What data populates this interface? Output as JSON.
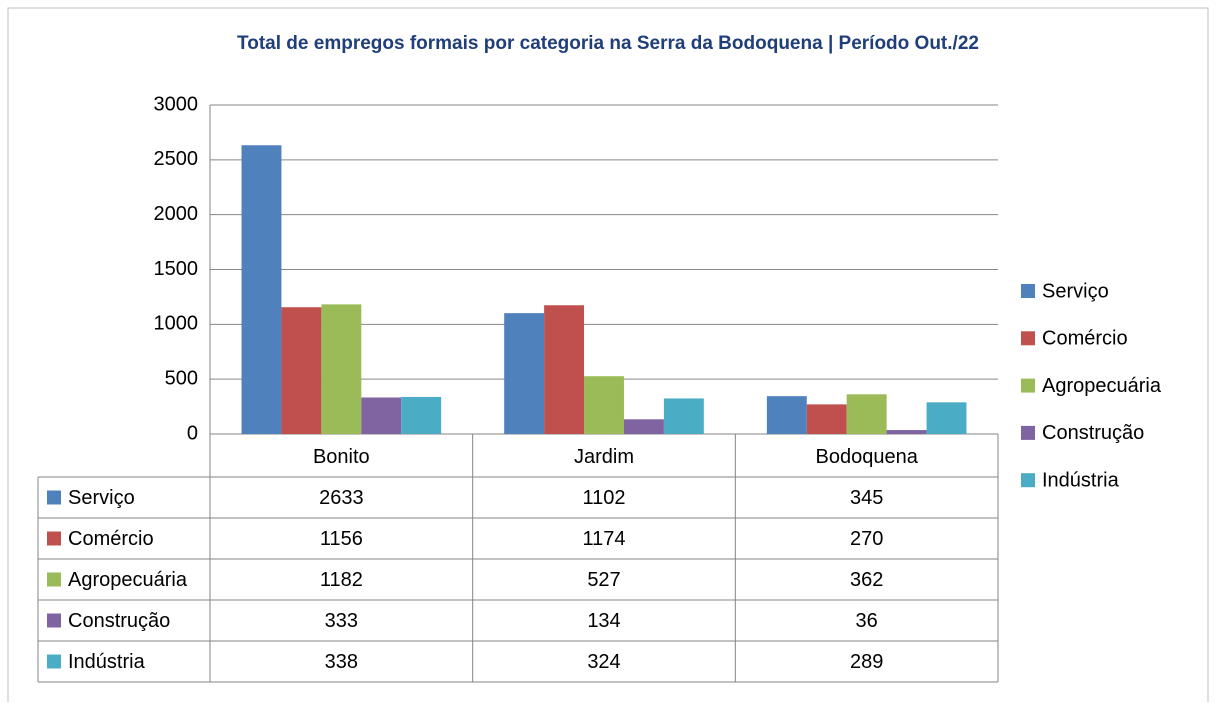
{
  "chart_data": {
    "type": "bar",
    "title": "Total de empregos formais por categoria na Serra da Bodoquena  | Período  Out./22",
    "categories": [
      "Bonito",
      "Jardim",
      "Bodoquena"
    ],
    "series": [
      {
        "name": "Serviço",
        "color": "#4f81bd",
        "values": [
          2633,
          1102,
          345
        ]
      },
      {
        "name": "Comércio",
        "color": "#c0504d",
        "values": [
          1156,
          1174,
          270
        ]
      },
      {
        "name": "Agropecuária",
        "color": "#9bbb59",
        "values": [
          1182,
          527,
          362
        ]
      },
      {
        "name": "Construção",
        "color": "#8064a2",
        "values": [
          333,
          134,
          36
        ]
      },
      {
        "name": "Indústria",
        "color": "#4bacc6",
        "values": [
          338,
          324,
          289
        ]
      }
    ],
    "ylim": [
      0,
      3000
    ],
    "yticks": [
      0,
      500,
      1000,
      1500,
      2000,
      2500,
      3000
    ],
    "grid": true,
    "legend": "right",
    "data_table": true
  }
}
